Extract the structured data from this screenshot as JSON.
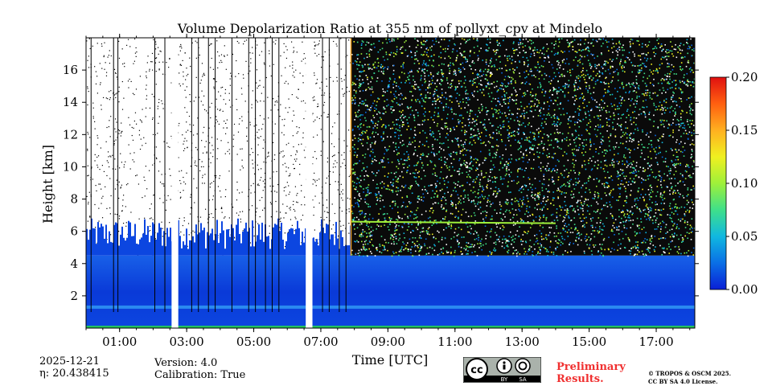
{
  "chart_data": {
    "type": "heatmap",
    "title": "Volume Depolarization Ratio at 355 nm of pollyxt_cpv at Mindelo",
    "xlabel": "Time [UTC]",
    "ylabel": "Height [km]",
    "x_range_hours": [
      0.0,
      18.15
    ],
    "y_range_km": [
      0,
      18
    ],
    "x_ticks": [
      {
        "value": 1,
        "label": "01:00"
      },
      {
        "value": 3,
        "label": "03:00"
      },
      {
        "value": 5,
        "label": "05:00"
      },
      {
        "value": 7,
        "label": "07:00"
      },
      {
        "value": 9,
        "label": "09:00"
      },
      {
        "value": 11,
        "label": "11:00"
      },
      {
        "value": 13,
        "label": "13:00"
      },
      {
        "value": 15,
        "label": "15:00"
      },
      {
        "value": 17,
        "label": "17:00"
      }
    ],
    "y_ticks": [
      {
        "value": 2,
        "label": "2"
      },
      {
        "value": 4,
        "label": "4"
      },
      {
        "value": 6,
        "label": "6"
      },
      {
        "value": 8,
        "label": "8"
      },
      {
        "value": 10,
        "label": "10"
      },
      {
        "value": 12,
        "label": "12"
      },
      {
        "value": 14,
        "label": "14"
      },
      {
        "value": 16,
        "label": "16"
      }
    ],
    "colorbar": {
      "range": [
        0.0,
        0.2
      ],
      "ticks": [
        {
          "value": 0.0,
          "label": "0.00"
        },
        {
          "value": 0.05,
          "label": "0.05"
        },
        {
          "value": 0.1,
          "label": "0.10"
        },
        {
          "value": 0.15,
          "label": "0.15"
        },
        {
          "value": 0.2,
          "label": "0.20"
        }
      ],
      "colormap": [
        "#0a1fd6",
        "#0a6fe6",
        "#10b8e0",
        "#3fe08a",
        "#9ef03a",
        "#f0f020",
        "#ffb020",
        "#ff6010",
        "#e01010"
      ]
    },
    "noise_onset_hour": 7.9,
    "gaps_hours": [
      [
        2.55,
        2.75
      ],
      [
        6.55,
        6.75
      ]
    ],
    "profile_breaks_hours": [
      0.15,
      0.82,
      0.95,
      2.05,
      2.35,
      3.15,
      3.35,
      3.65,
      3.85,
      4.35,
      4.85,
      5.05,
      5.35,
      5.55,
      5.75,
      7.05,
      7.25,
      7.55,
      7.75
    ],
    "layers": [
      {
        "name": "boundary-layer",
        "from_km": 0.0,
        "to_km": 4.5,
        "value": 0.01
      },
      {
        "name": "surface-band",
        "at_km": 1.2,
        "value": 0.06
      },
      {
        "name": "elevated-layer",
        "at_km": 6.6,
        "from_hour": 7.9,
        "to_hour": 14.0,
        "value": 0.08
      }
    ]
  },
  "info": {
    "date": "2025-12-21",
    "eta": "η: 20.438415",
    "version": "Version: 4.0",
    "calibration": "Calibration: True"
  },
  "license": {
    "preliminary": [
      "Preliminary",
      "Results."
    ],
    "copyright": [
      "© TROPOS & OSCM 2025.",
      "CC BY SA 4.0 License."
    ],
    "badge_text": "cc",
    "badge_by": "BY",
    "badge_sa": "SA"
  },
  "colors": {
    "gap": "#ffffff",
    "bottom_green": "#22c060",
    "axis": "#000000",
    "orange_line": "#f0a020"
  }
}
